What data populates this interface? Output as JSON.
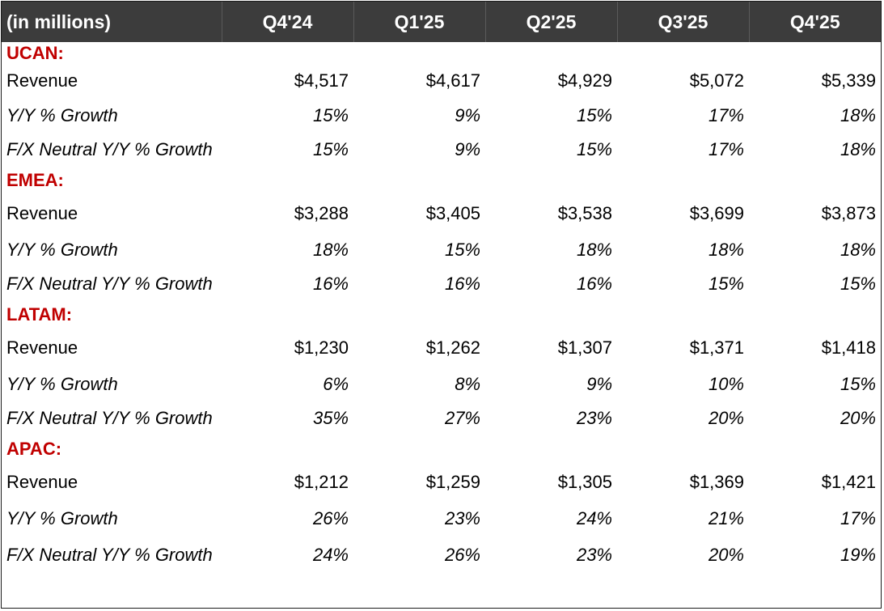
{
  "header": {
    "unit_label": "(in millions)",
    "quarters": [
      "Q4'24",
      "Q1'25",
      "Q2'25",
      "Q3'25",
      "Q4'25"
    ]
  },
  "regions": [
    {
      "name": "UCAN:",
      "rows": [
        {
          "label": "Revenue",
          "values": [
            "$4,517",
            "$4,617",
            "$4,929",
            "$5,072",
            "$5,339"
          ]
        },
        {
          "label": "Y/Y % Growth",
          "values": [
            "15%",
            "9%",
            "15%",
            "17%",
            "18%"
          ]
        },
        {
          "label": "F/X Neutral Y/Y % Growth",
          "values": [
            "15%",
            "9%",
            "15%",
            "17%",
            "18%"
          ]
        }
      ]
    },
    {
      "name": "EMEA:",
      "rows": [
        {
          "label": "Revenue",
          "values": [
            "$3,288",
            "$3,405",
            "$3,538",
            "$3,699",
            "$3,873"
          ]
        },
        {
          "label": "Y/Y % Growth",
          "values": [
            "18%",
            "15%",
            "18%",
            "18%",
            "18%"
          ]
        },
        {
          "label": "F/X Neutral Y/Y % Growth",
          "values": [
            "16%",
            "16%",
            "16%",
            "15%",
            "15%"
          ]
        }
      ]
    },
    {
      "name": "LATAM:",
      "rows": [
        {
          "label": "Revenue",
          "values": [
            "$1,230",
            "$1,262",
            "$1,307",
            "$1,371",
            "$1,418"
          ]
        },
        {
          "label": "Y/Y % Growth",
          "values": [
            "6%",
            "8%",
            "9%",
            "10%",
            "15%"
          ]
        },
        {
          "label": "F/X Neutral Y/Y % Growth",
          "values": [
            "35%",
            "27%",
            "23%",
            "20%",
            "20%"
          ]
        }
      ]
    },
    {
      "name": "APAC:",
      "rows": [
        {
          "label": "Revenue",
          "values": [
            "$1,212",
            "$1,259",
            "$1,305",
            "$1,369",
            "$1,421"
          ]
        },
        {
          "label": "Y/Y % Growth",
          "values": [
            "26%",
            "23%",
            "24%",
            "21%",
            "17%"
          ]
        },
        {
          "label": "F/X Neutral Y/Y % Growth",
          "values": [
            "24%",
            "26%",
            "23%",
            "20%",
            "19%"
          ]
        }
      ]
    }
  ],
  "colors": {
    "header_bg": "#3c3c3c",
    "header_text": "#ffffff",
    "region_text": "#c00000",
    "body_text": "#000000"
  }
}
